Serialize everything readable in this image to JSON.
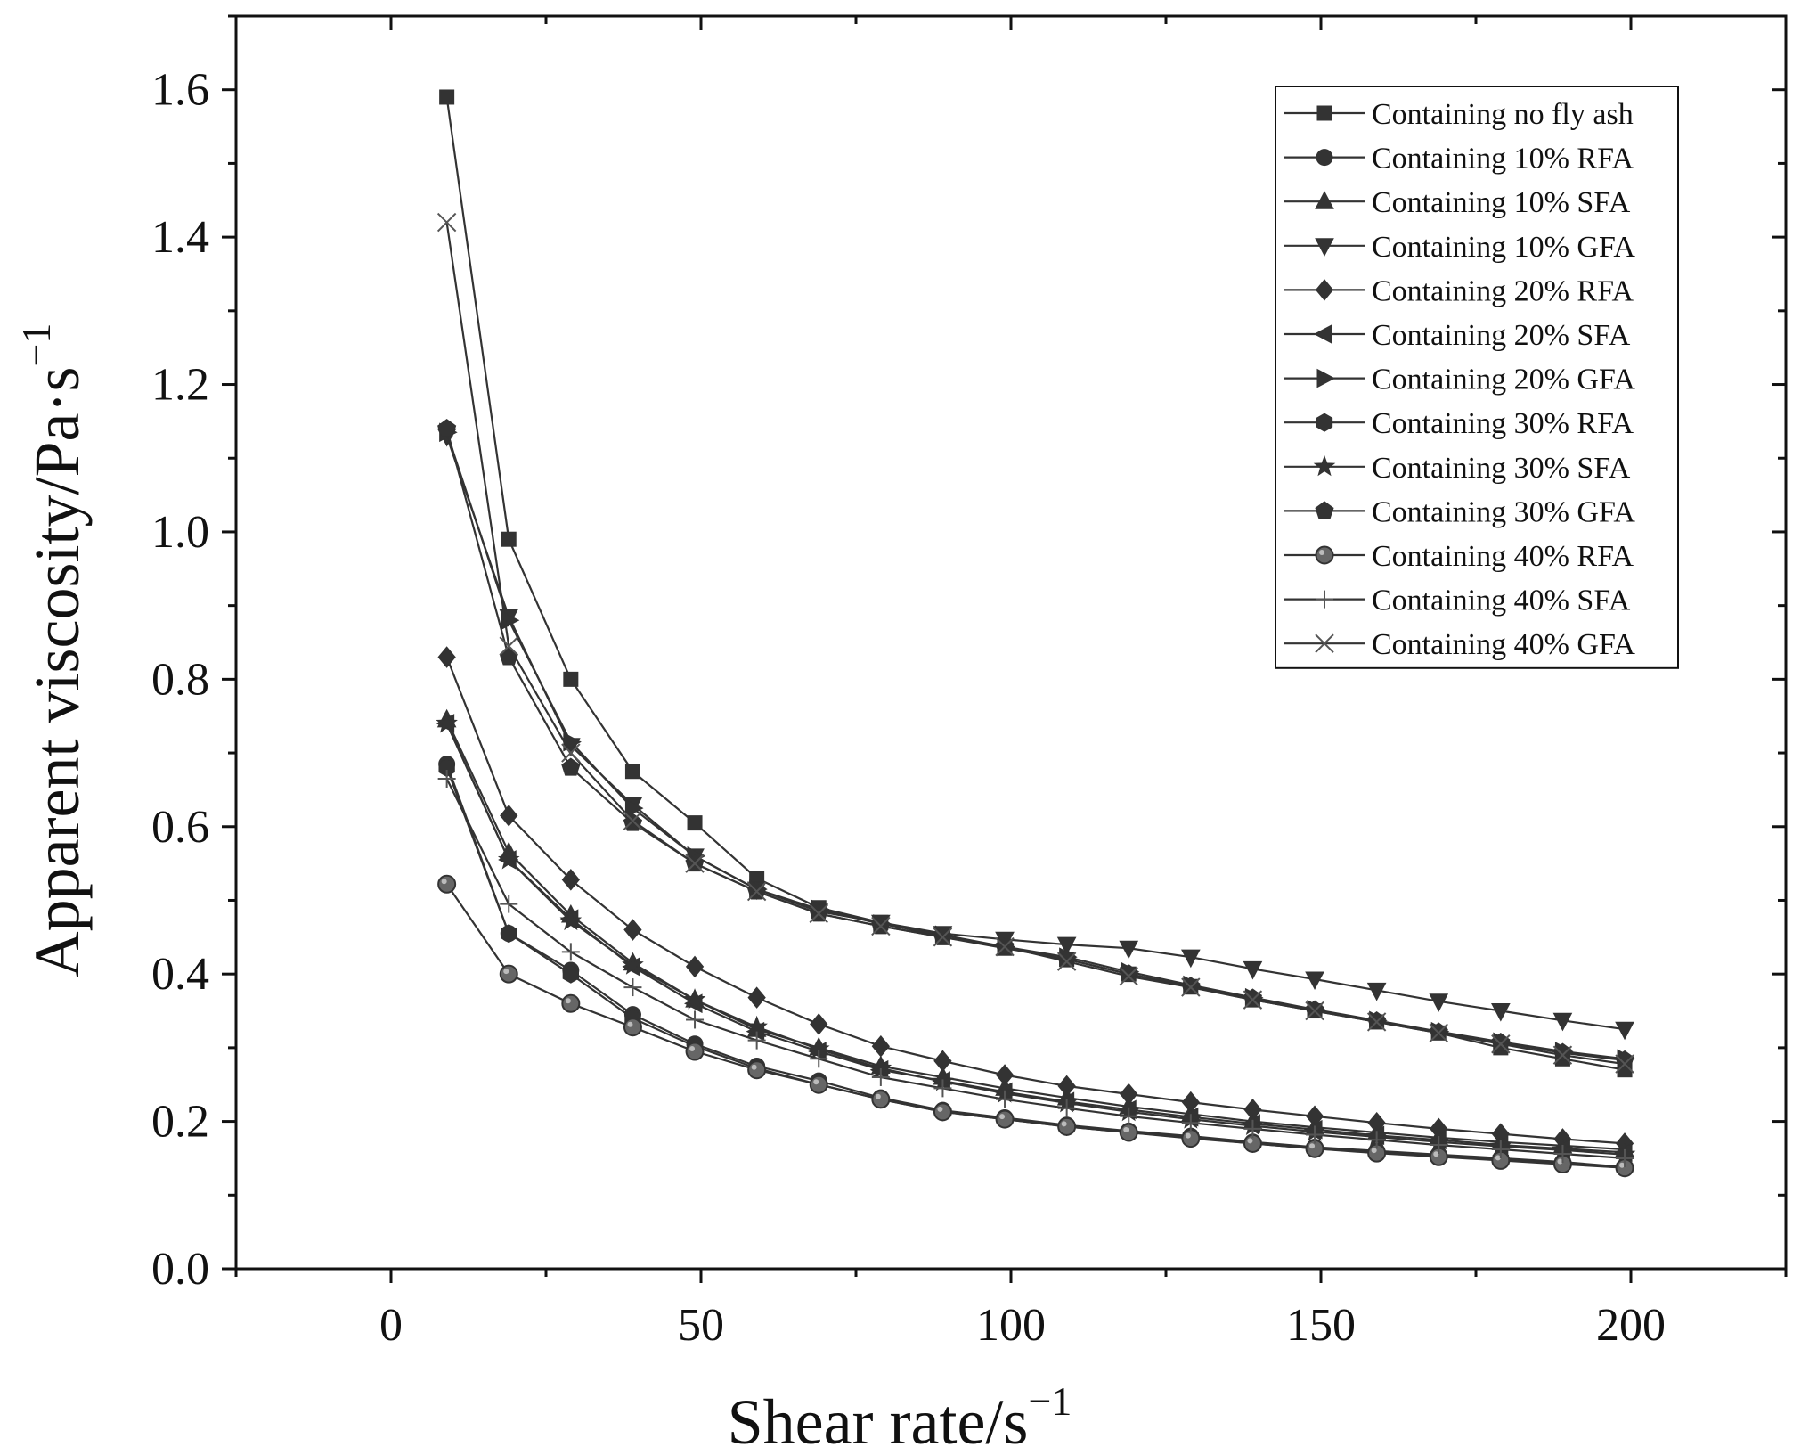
{
  "colors": {
    "series": "#333333",
    "axis": "#111111",
    "background": "#ffffff"
  },
  "chart_data": {
    "type": "line",
    "title": "",
    "xlabel": "Shear rate/s",
    "xlabel_sup": "−1",
    "ylabel": "Apparent viscosity/Pa·s",
    "ylabel_sup": "−1",
    "xlim": [
      -25,
      225
    ],
    "ylim": [
      0,
      1.7
    ],
    "xticks": [
      0,
      50,
      100,
      150,
      200
    ],
    "xtick_labels": [
      "0",
      "50",
      "100",
      "150",
      "200"
    ],
    "yticks": [
      0.0,
      0.2,
      0.4,
      0.6,
      0.8,
      1.0,
      1.2,
      1.4,
      1.6
    ],
    "ytick_labels": [
      "0.0",
      "0.2",
      "0.4",
      "0.6",
      "0.8",
      "1.0",
      "1.2",
      "1.4",
      "1.6"
    ],
    "grid": false,
    "legend_position": "top-right",
    "x": [
      9,
      19,
      29,
      39,
      49,
      59,
      69,
      79,
      89,
      99,
      109,
      119,
      129,
      139,
      149,
      159,
      169,
      179,
      189,
      199
    ],
    "series": [
      {
        "name": "Containing no fly ash",
        "marker": "square",
        "values": [
          1.59,
          0.99,
          0.8,
          0.675,
          0.605,
          0.53,
          0.49,
          0.47,
          0.45,
          0.435,
          0.42,
          0.4,
          0.383,
          0.365,
          0.35,
          0.335,
          0.32,
          0.3,
          0.285,
          0.27
        ]
      },
      {
        "name": "Containing 10% RFA",
        "marker": "circle",
        "values": [
          0.685,
          0.455,
          0.405,
          0.345,
          0.305,
          0.275,
          0.255,
          0.232,
          0.215,
          0.205,
          0.195,
          0.187,
          0.18,
          0.172,
          0.165,
          0.16,
          0.155,
          0.15,
          0.145,
          0.138
        ]
      },
      {
        "name": "Containing 10% SFA",
        "marker": "triangle-up",
        "values": [
          0.745,
          0.565,
          0.48,
          0.415,
          0.365,
          0.325,
          0.3,
          0.275,
          0.26,
          0.245,
          0.232,
          0.22,
          0.21,
          0.2,
          0.192,
          0.185,
          0.178,
          0.172,
          0.167,
          0.162
        ]
      },
      {
        "name": "Containing 10% GFA",
        "marker": "triangle-down",
        "values": [
          1.13,
          0.885,
          0.71,
          0.63,
          0.56,
          0.515,
          0.485,
          0.47,
          0.455,
          0.447,
          0.44,
          0.435,
          0.423,
          0.407,
          0.393,
          0.378,
          0.363,
          0.35,
          0.337,
          0.325
        ]
      },
      {
        "name": "Containing 20% RFA",
        "marker": "diamond",
        "values": [
          0.83,
          0.615,
          0.528,
          0.46,
          0.41,
          0.368,
          0.332,
          0.302,
          0.282,
          0.263,
          0.248,
          0.237,
          0.226,
          0.216,
          0.207,
          0.198,
          0.19,
          0.183,
          0.176,
          0.17
        ]
      },
      {
        "name": "Containing 20% SFA",
        "marker": "triangle-left",
        "values": [
          0.74,
          0.555,
          0.475,
          0.41,
          0.36,
          0.322,
          0.295,
          0.27,
          0.255,
          0.24,
          0.227,
          0.216,
          0.206,
          0.197,
          0.189,
          0.181,
          0.175,
          0.168,
          0.163,
          0.158
        ]
      },
      {
        "name": "Containing 20% GFA",
        "marker": "triangle-right",
        "values": [
          1.135,
          0.88,
          0.715,
          0.625,
          0.56,
          0.515,
          0.488,
          0.468,
          0.453,
          0.437,
          0.423,
          0.403,
          0.385,
          0.368,
          0.352,
          0.337,
          0.322,
          0.308,
          0.295,
          0.285
        ]
      },
      {
        "name": "Containing 30% RFA",
        "marker": "hexagon",
        "values": [
          0.68,
          0.455,
          0.4,
          0.34,
          0.302,
          0.272,
          0.25,
          0.23,
          0.213,
          0.203,
          0.193,
          0.185,
          0.178,
          0.17,
          0.163,
          0.158,
          0.153,
          0.148,
          0.143,
          0.137
        ]
      },
      {
        "name": "Containing 30% SFA",
        "marker": "star",
        "values": [
          0.74,
          0.555,
          0.472,
          0.412,
          0.365,
          0.328,
          0.298,
          0.272,
          0.254,
          0.238,
          0.225,
          0.213,
          0.203,
          0.194,
          0.186,
          0.179,
          0.172,
          0.166,
          0.161,
          0.155
        ]
      },
      {
        "name": "Containing 30% GFA",
        "marker": "pentagon",
        "values": [
          1.14,
          0.83,
          0.68,
          0.605,
          0.55,
          0.512,
          0.482,
          0.465,
          0.45,
          0.437,
          0.42,
          0.4,
          0.383,
          0.367,
          0.351,
          0.336,
          0.321,
          0.307,
          0.293,
          0.283
        ]
      },
      {
        "name": "Containing 40% RFA",
        "marker": "circle-half",
        "values": [
          0.522,
          0.4,
          0.36,
          0.328,
          0.295,
          0.27,
          0.25,
          0.23,
          0.213,
          0.203,
          0.193,
          0.185,
          0.177,
          0.17,
          0.163,
          0.157,
          0.152,
          0.147,
          0.142,
          0.137
        ]
      },
      {
        "name": "Containing 40% SFA",
        "marker": "plus",
        "values": [
          0.665,
          0.495,
          0.43,
          0.382,
          0.338,
          0.31,
          0.285,
          0.26,
          0.245,
          0.23,
          0.218,
          0.207,
          0.198,
          0.19,
          0.182,
          0.175,
          0.168,
          0.162,
          0.156,
          0.15
        ]
      },
      {
        "name": "Containing 40% GFA",
        "marker": "x",
        "values": [
          1.42,
          0.845,
          0.7,
          0.608,
          0.55,
          0.512,
          0.482,
          0.465,
          0.45,
          0.437,
          0.417,
          0.397,
          0.382,
          0.365,
          0.35,
          0.335,
          0.32,
          0.305,
          0.29,
          0.278
        ]
      }
    ]
  }
}
